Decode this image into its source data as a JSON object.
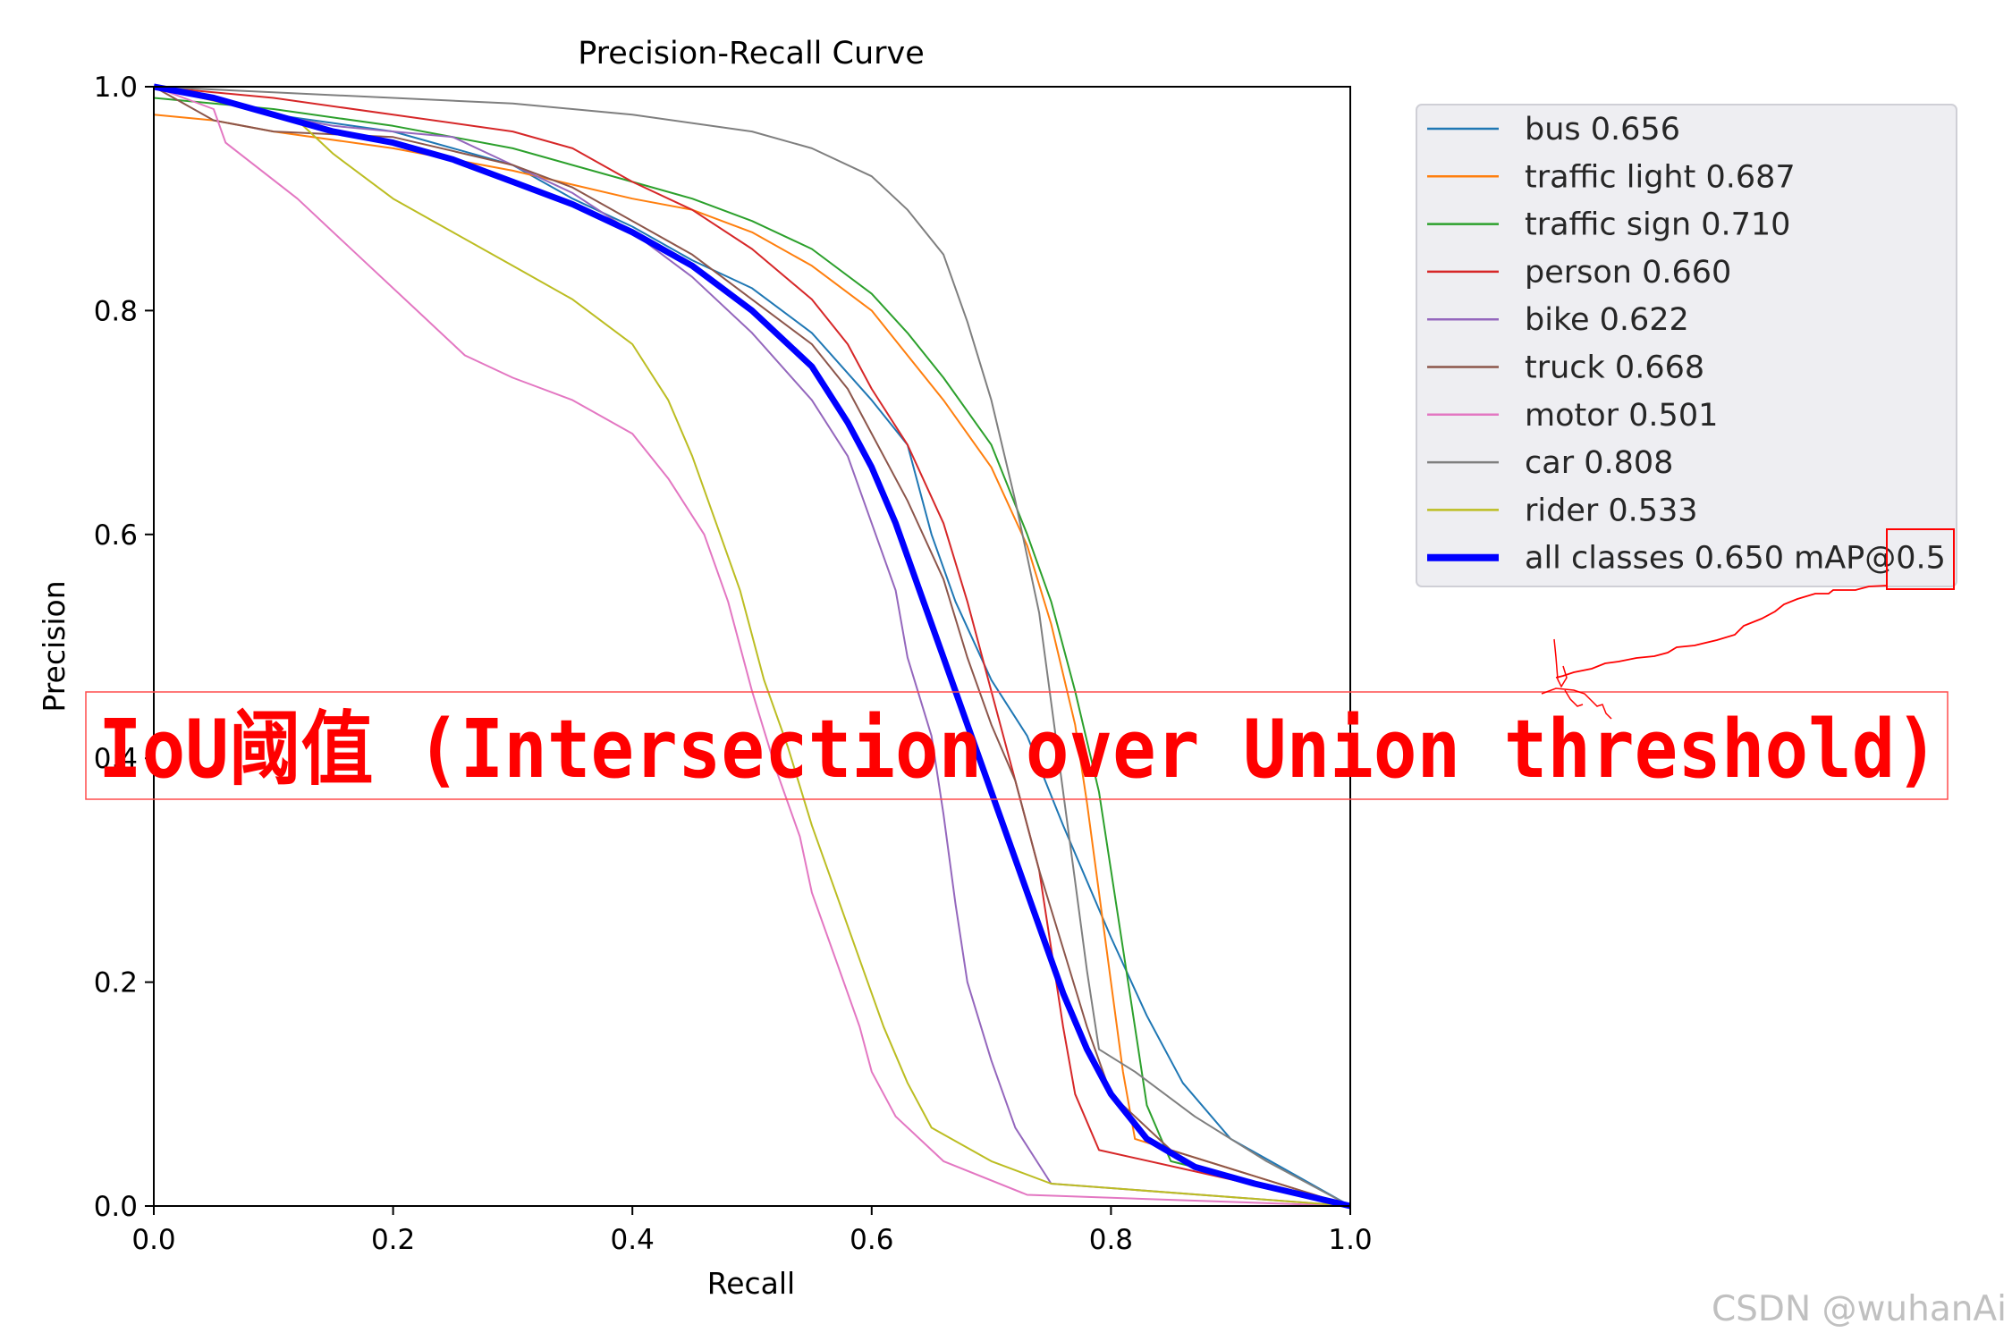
{
  "chart_data": {
    "type": "line",
    "title": "Precision-Recall Curve",
    "xlabel": "Recall",
    "ylabel": "Precision",
    "xlim": [
      0,
      1
    ],
    "ylim": [
      0,
      1
    ],
    "xticks": [
      "0.0",
      "0.2",
      "0.4",
      "0.6",
      "0.8",
      "1.0"
    ],
    "yticks": [
      "0.0",
      "0.2",
      "0.4",
      "0.6",
      "0.8",
      "1.0"
    ],
    "grid": false,
    "legend_position": "outside-top-right",
    "series": [
      {
        "name": "bus 0.656",
        "color": "#1f77b4",
        "width": 2,
        "points": [
          [
            0,
            1.0
          ],
          [
            0.05,
            0.99
          ],
          [
            0.1,
            0.975
          ],
          [
            0.2,
            0.96
          ],
          [
            0.3,
            0.93
          ],
          [
            0.35,
            0.9
          ],
          [
            0.4,
            0.875
          ],
          [
            0.45,
            0.845
          ],
          [
            0.5,
            0.82
          ],
          [
            0.55,
            0.78
          ],
          [
            0.6,
            0.72
          ],
          [
            0.63,
            0.68
          ],
          [
            0.65,
            0.6
          ],
          [
            0.67,
            0.54
          ],
          [
            0.7,
            0.47
          ],
          [
            0.73,
            0.42
          ],
          [
            0.76,
            0.34
          ],
          [
            0.8,
            0.24
          ],
          [
            0.83,
            0.17
          ],
          [
            0.86,
            0.11
          ],
          [
            0.9,
            0.06
          ],
          [
            0.95,
            0.03
          ],
          [
            1.0,
            0.0
          ]
        ]
      },
      {
        "name": "traffic light 0.687",
        "color": "#ff7f0e",
        "width": 2,
        "points": [
          [
            0,
            0.975
          ],
          [
            0.05,
            0.97
          ],
          [
            0.1,
            0.96
          ],
          [
            0.2,
            0.945
          ],
          [
            0.3,
            0.925
          ],
          [
            0.4,
            0.9
          ],
          [
            0.45,
            0.89
          ],
          [
            0.5,
            0.87
          ],
          [
            0.55,
            0.84
          ],
          [
            0.6,
            0.8
          ],
          [
            0.63,
            0.76
          ],
          [
            0.66,
            0.72
          ],
          [
            0.7,
            0.66
          ],
          [
            0.73,
            0.59
          ],
          [
            0.75,
            0.52
          ],
          [
            0.77,
            0.43
          ],
          [
            0.78,
            0.36
          ],
          [
            0.79,
            0.28
          ],
          [
            0.8,
            0.2
          ],
          [
            0.81,
            0.12
          ],
          [
            0.82,
            0.06
          ],
          [
            1.0,
            0.0
          ]
        ]
      },
      {
        "name": "traffic sign 0.710",
        "color": "#2ca02c",
        "width": 2,
        "points": [
          [
            0,
            0.99
          ],
          [
            0.1,
            0.98
          ],
          [
            0.2,
            0.965
          ],
          [
            0.3,
            0.945
          ],
          [
            0.4,
            0.915
          ],
          [
            0.45,
            0.9
          ],
          [
            0.5,
            0.88
          ],
          [
            0.55,
            0.855
          ],
          [
            0.6,
            0.815
          ],
          [
            0.63,
            0.78
          ],
          [
            0.66,
            0.74
          ],
          [
            0.7,
            0.68
          ],
          [
            0.73,
            0.6
          ],
          [
            0.75,
            0.54
          ],
          [
            0.77,
            0.46
          ],
          [
            0.79,
            0.37
          ],
          [
            0.8,
            0.3
          ],
          [
            0.81,
            0.23
          ],
          [
            0.82,
            0.16
          ],
          [
            0.83,
            0.09
          ],
          [
            0.85,
            0.04
          ],
          [
            1.0,
            0.0
          ]
        ]
      },
      {
        "name": "person 0.660",
        "color": "#d62728",
        "width": 2,
        "points": [
          [
            0,
            1.0
          ],
          [
            0.1,
            0.99
          ],
          [
            0.2,
            0.975
          ],
          [
            0.3,
            0.96
          ],
          [
            0.35,
            0.945
          ],
          [
            0.4,
            0.915
          ],
          [
            0.45,
            0.89
          ],
          [
            0.5,
            0.855
          ],
          [
            0.55,
            0.81
          ],
          [
            0.58,
            0.77
          ],
          [
            0.6,
            0.73
          ],
          [
            0.63,
            0.68
          ],
          [
            0.66,
            0.61
          ],
          [
            0.68,
            0.54
          ],
          [
            0.7,
            0.46
          ],
          [
            0.72,
            0.38
          ],
          [
            0.74,
            0.3
          ],
          [
            0.75,
            0.23
          ],
          [
            0.76,
            0.16
          ],
          [
            0.77,
            0.1
          ],
          [
            0.79,
            0.05
          ],
          [
            1.0,
            0.0
          ]
        ]
      },
      {
        "name": "bike 0.622",
        "color": "#9467bd",
        "width": 2,
        "points": [
          [
            0,
            1.0
          ],
          [
            0.05,
            0.99
          ],
          [
            0.1,
            0.975
          ],
          [
            0.15,
            0.965
          ],
          [
            0.2,
            0.96
          ],
          [
            0.25,
            0.955
          ],
          [
            0.3,
            0.93
          ],
          [
            0.35,
            0.905
          ],
          [
            0.4,
            0.87
          ],
          [
            0.45,
            0.83
          ],
          [
            0.5,
            0.78
          ],
          [
            0.55,
            0.72
          ],
          [
            0.58,
            0.67
          ],
          [
            0.6,
            0.61
          ],
          [
            0.62,
            0.55
          ],
          [
            0.63,
            0.49
          ],
          [
            0.65,
            0.42
          ],
          [
            0.66,
            0.35
          ],
          [
            0.67,
            0.27
          ],
          [
            0.68,
            0.2
          ],
          [
            0.7,
            0.13
          ],
          [
            0.72,
            0.07
          ],
          [
            0.75,
            0.02
          ],
          [
            1.0,
            0.0
          ]
        ]
      },
      {
        "name": "truck 0.668",
        "color": "#8c564b",
        "width": 2,
        "points": [
          [
            0,
            1.0
          ],
          [
            0.05,
            0.97
          ],
          [
            0.1,
            0.96
          ],
          [
            0.2,
            0.955
          ],
          [
            0.3,
            0.93
          ],
          [
            0.35,
            0.91
          ],
          [
            0.4,
            0.88
          ],
          [
            0.45,
            0.85
          ],
          [
            0.5,
            0.81
          ],
          [
            0.55,
            0.77
          ],
          [
            0.58,
            0.73
          ],
          [
            0.6,
            0.69
          ],
          [
            0.63,
            0.63
          ],
          [
            0.66,
            0.56
          ],
          [
            0.68,
            0.49
          ],
          [
            0.7,
            0.43
          ],
          [
            0.72,
            0.38
          ],
          [
            0.74,
            0.3
          ],
          [
            0.76,
            0.23
          ],
          [
            0.78,
            0.16
          ],
          [
            0.8,
            0.1
          ],
          [
            0.85,
            0.05
          ],
          [
            1.0,
            0.0
          ]
        ]
      },
      {
        "name": "motor 0.501",
        "color": "#e377c2",
        "width": 2,
        "points": [
          [
            0,
            1.0
          ],
          [
            0.05,
            0.98
          ],
          [
            0.06,
            0.95
          ],
          [
            0.12,
            0.9
          ],
          [
            0.15,
            0.87
          ],
          [
            0.18,
            0.84
          ],
          [
            0.22,
            0.8
          ],
          [
            0.26,
            0.76
          ],
          [
            0.3,
            0.74
          ],
          [
            0.35,
            0.72
          ],
          [
            0.4,
            0.69
          ],
          [
            0.43,
            0.65
          ],
          [
            0.46,
            0.6
          ],
          [
            0.48,
            0.54
          ],
          [
            0.5,
            0.46
          ],
          [
            0.52,
            0.39
          ],
          [
            0.54,
            0.33
          ],
          [
            0.55,
            0.28
          ],
          [
            0.57,
            0.22
          ],
          [
            0.59,
            0.16
          ],
          [
            0.6,
            0.12
          ],
          [
            0.62,
            0.08
          ],
          [
            0.66,
            0.04
          ],
          [
            0.73,
            0.01
          ],
          [
            1.0,
            0.0
          ]
        ]
      },
      {
        "name": "car 0.808",
        "color": "#7f7f7f",
        "width": 2,
        "points": [
          [
            0,
            1.0
          ],
          [
            0.1,
            0.995
          ],
          [
            0.2,
            0.99
          ],
          [
            0.3,
            0.985
          ],
          [
            0.4,
            0.975
          ],
          [
            0.5,
            0.96
          ],
          [
            0.55,
            0.945
          ],
          [
            0.6,
            0.92
          ],
          [
            0.63,
            0.89
          ],
          [
            0.66,
            0.85
          ],
          [
            0.68,
            0.79
          ],
          [
            0.7,
            0.72
          ],
          [
            0.72,
            0.63
          ],
          [
            0.74,
            0.53
          ],
          [
            0.75,
            0.45
          ],
          [
            0.76,
            0.37
          ],
          [
            0.77,
            0.29
          ],
          [
            0.78,
            0.21
          ],
          [
            0.79,
            0.14
          ],
          [
            0.82,
            0.12
          ],
          [
            0.87,
            0.08
          ],
          [
            0.93,
            0.04
          ],
          [
            1.0,
            0.0
          ]
        ]
      },
      {
        "name": "rider 0.533",
        "color": "#bcbd22",
        "width": 2,
        "points": [
          [
            0,
            1.0
          ],
          [
            0.12,
            0.97
          ],
          [
            0.15,
            0.94
          ],
          [
            0.2,
            0.9
          ],
          [
            0.25,
            0.87
          ],
          [
            0.3,
            0.84
          ],
          [
            0.35,
            0.81
          ],
          [
            0.4,
            0.77
          ],
          [
            0.43,
            0.72
          ],
          [
            0.45,
            0.67
          ],
          [
            0.47,
            0.61
          ],
          [
            0.49,
            0.55
          ],
          [
            0.51,
            0.47
          ],
          [
            0.53,
            0.41
          ],
          [
            0.55,
            0.34
          ],
          [
            0.57,
            0.28
          ],
          [
            0.59,
            0.22
          ],
          [
            0.61,
            0.16
          ],
          [
            0.63,
            0.11
          ],
          [
            0.65,
            0.07
          ],
          [
            0.7,
            0.04
          ],
          [
            0.75,
            0.02
          ],
          [
            1.0,
            0.0
          ]
        ]
      },
      {
        "name": "all classes 0.650 mAP@0.5",
        "color": "#0000ff",
        "width": 7,
        "points": [
          [
            0,
            1.0
          ],
          [
            0.05,
            0.99
          ],
          [
            0.1,
            0.975
          ],
          [
            0.15,
            0.96
          ],
          [
            0.2,
            0.95
          ],
          [
            0.25,
            0.935
          ],
          [
            0.3,
            0.915
          ],
          [
            0.35,
            0.895
          ],
          [
            0.4,
            0.87
          ],
          [
            0.45,
            0.84
          ],
          [
            0.5,
            0.8
          ],
          [
            0.55,
            0.75
          ],
          [
            0.58,
            0.7
          ],
          [
            0.6,
            0.66
          ],
          [
            0.62,
            0.61
          ],
          [
            0.64,
            0.55
          ],
          [
            0.66,
            0.49
          ],
          [
            0.68,
            0.43
          ],
          [
            0.7,
            0.37
          ],
          [
            0.72,
            0.31
          ],
          [
            0.74,
            0.25
          ],
          [
            0.76,
            0.19
          ],
          [
            0.78,
            0.14
          ],
          [
            0.8,
            0.1
          ],
          [
            0.83,
            0.06
          ],
          [
            0.87,
            0.035
          ],
          [
            0.92,
            0.02
          ],
          [
            1.0,
            0.0
          ]
        ]
      }
    ]
  },
  "overlay": {
    "text": "IoU阈值 (Intersection over Union threshold)",
    "color": "#ff0000"
  },
  "watermark": "CSDN @wuhanAi"
}
